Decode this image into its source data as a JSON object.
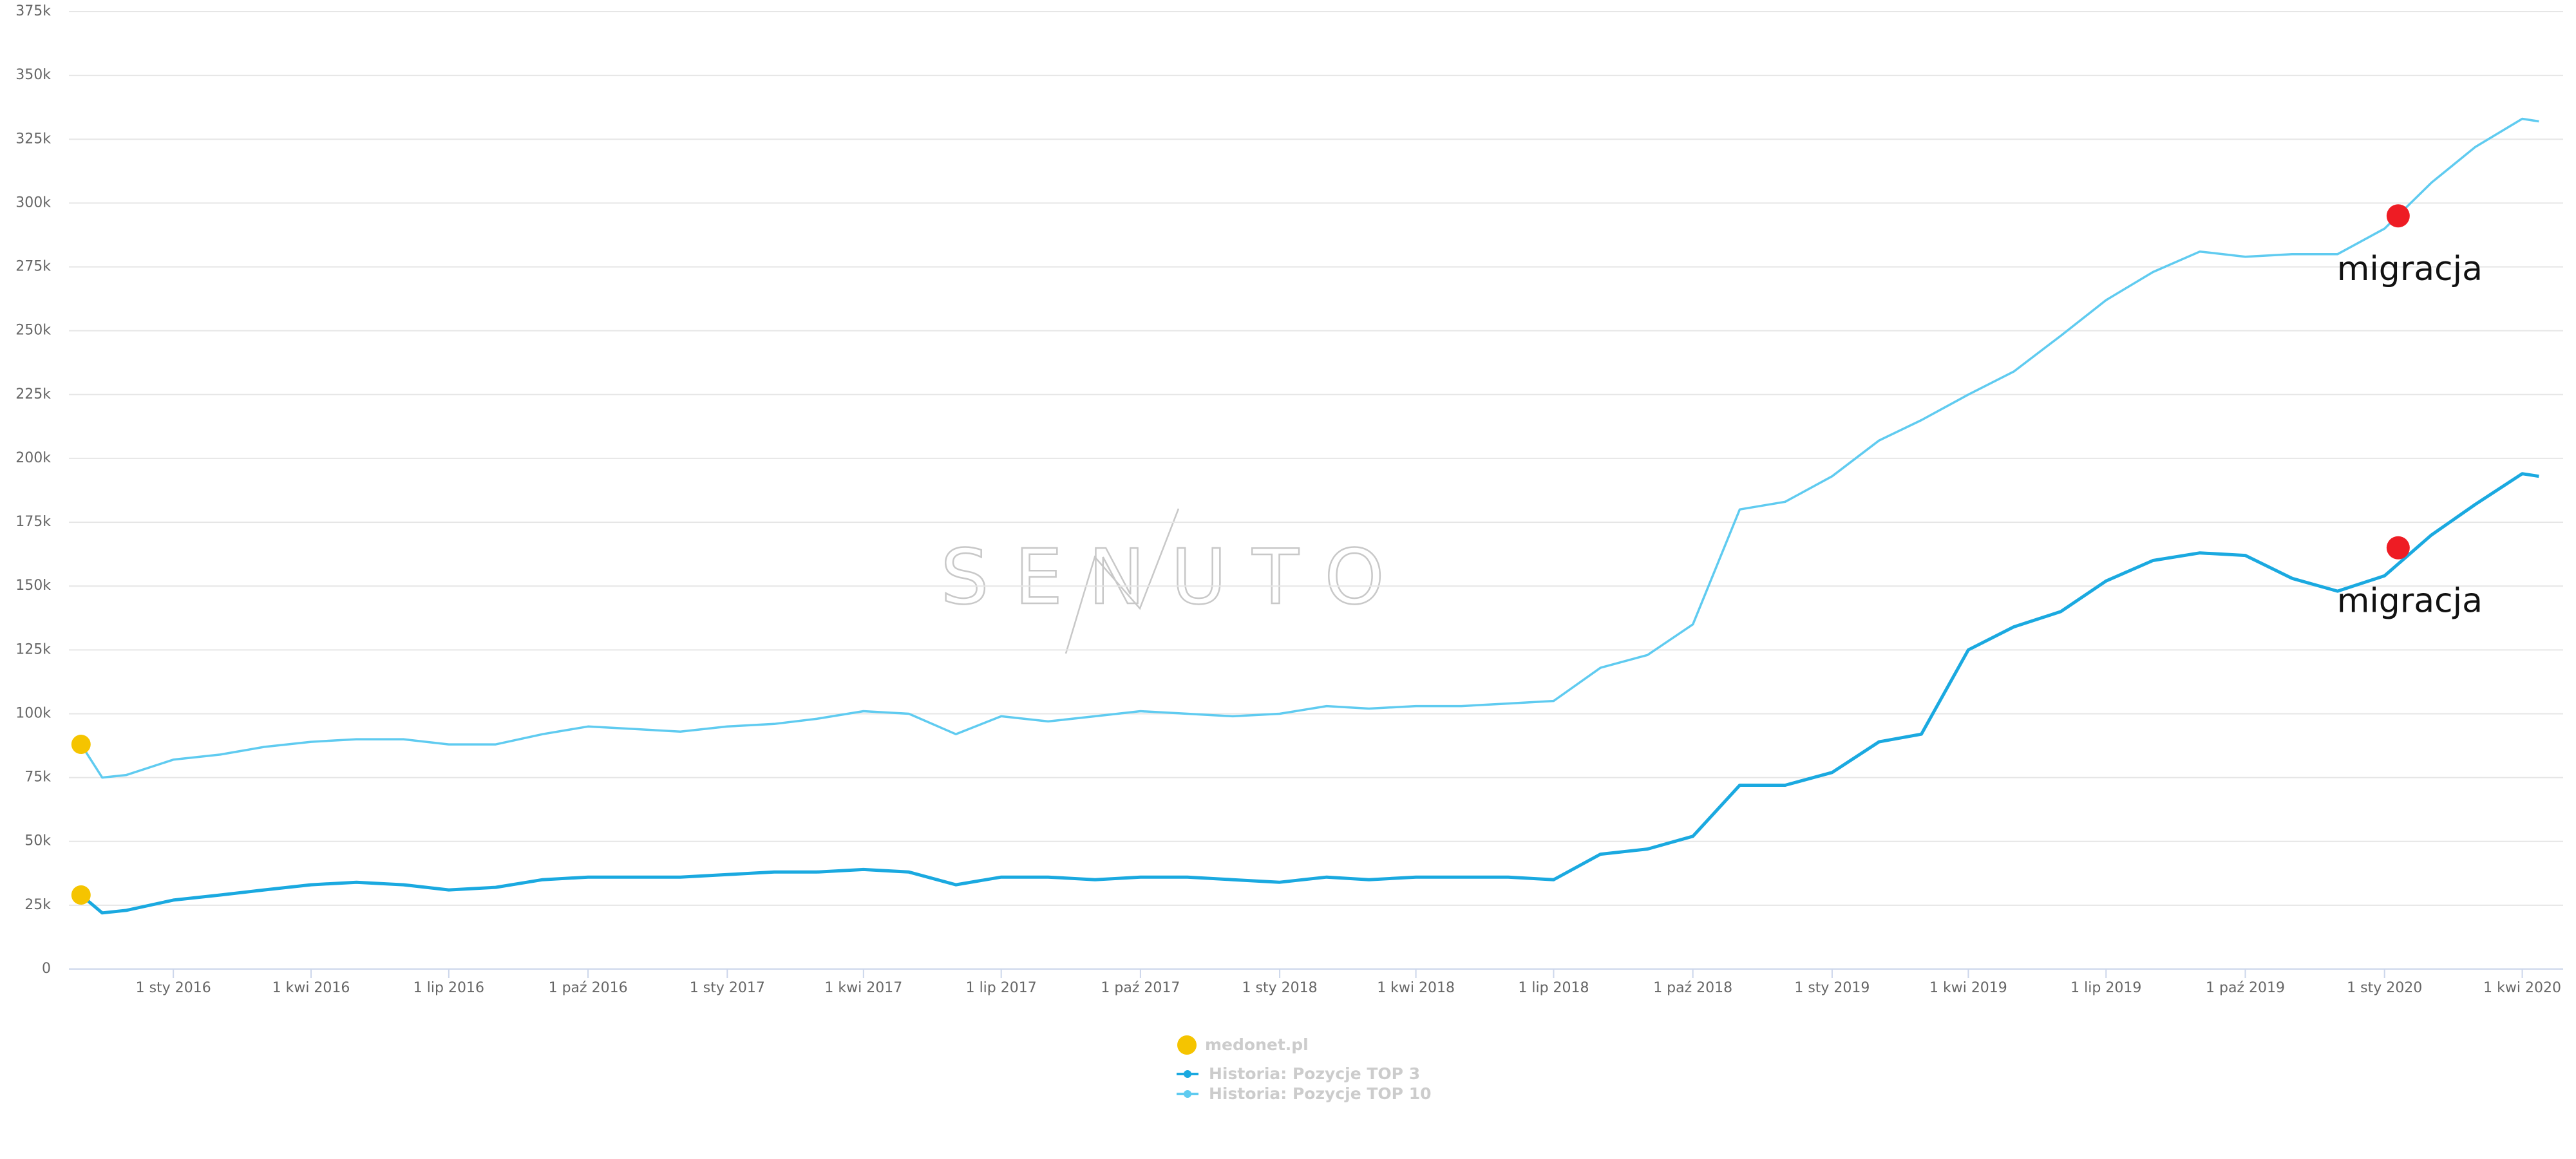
{
  "chart_data": {
    "type": "line",
    "watermark": "SENUTO",
    "legend": {
      "title": "medonet.pl",
      "color": "#f5c400"
    },
    "x": [
      "2015-11-01",
      "2015-11-15",
      "2015-12-01",
      "2016-01-01",
      "2016-02-01",
      "2016-03-01",
      "2016-04-01",
      "2016-05-01",
      "2016-06-01",
      "2016-07-01",
      "2016-08-01",
      "2016-09-01",
      "2016-10-01",
      "2016-11-01",
      "2016-12-01",
      "2017-01-01",
      "2017-02-01",
      "2017-03-01",
      "2017-04-01",
      "2017-05-01",
      "2017-06-01",
      "2017-07-01",
      "2017-08-01",
      "2017-09-01",
      "2017-10-01",
      "2017-11-01",
      "2017-12-01",
      "2018-01-01",
      "2018-02-01",
      "2018-03-01",
      "2018-04-01",
      "2018-05-01",
      "2018-06-01",
      "2018-07-01",
      "2018-08-01",
      "2018-09-01",
      "2018-10-01",
      "2018-11-01",
      "2018-12-01",
      "2019-01-01",
      "2019-02-01",
      "2019-03-01",
      "2019-04-01",
      "2019-05-01",
      "2019-06-01",
      "2019-07-01",
      "2019-08-01",
      "2019-09-01",
      "2019-10-01",
      "2019-11-01",
      "2019-12-01",
      "2020-01-01",
      "2020-02-01",
      "2020-03-01",
      "2020-04-01",
      "2020-04-12"
    ],
    "series": [
      {
        "name": "Historia: Pozycje TOP 3",
        "color": "#1aa9e0",
        "values": [
          29000,
          22000,
          23000,
          27000,
          29000,
          31000,
          33000,
          34000,
          33000,
          31000,
          32000,
          35000,
          36000,
          36000,
          36000,
          37000,
          38000,
          38000,
          39000,
          38000,
          33000,
          36000,
          36000,
          35000,
          36000,
          36000,
          35000,
          34000,
          36000,
          35000,
          36000,
          36000,
          36000,
          35000,
          45000,
          47000,
          52000,
          72000,
          72000,
          77000,
          89000,
          92000,
          125000,
          134000,
          140000,
          152000,
          160000,
          163000,
          162000,
          153000,
          148000,
          154000,
          170000,
          182000,
          194000,
          193000
        ]
      },
      {
        "name": "Historia: Pozycje TOP 10",
        "color": "#5fcbf0",
        "values": [
          88000,
          75000,
          76000,
          82000,
          84000,
          87000,
          89000,
          90000,
          90000,
          88000,
          88000,
          92000,
          95000,
          94000,
          93000,
          95000,
          96000,
          98000,
          101000,
          100000,
          92000,
          99000,
          97000,
          99000,
          101000,
          100000,
          99000,
          100000,
          103000,
          102000,
          103000,
          103000,
          104000,
          105000,
          118000,
          123000,
          135000,
          180000,
          183000,
          193000,
          207000,
          215000,
          225000,
          234000,
          248000,
          262000,
          273000,
          281000,
          279000,
          280000,
          280000,
          290000,
          308000,
          322000,
          333000,
          332000
        ]
      }
    ],
    "annotations": [
      {
        "text": "migracja",
        "x": "2020-01-10",
        "y": 295000,
        "color": "#ee1c24"
      },
      {
        "text": "migracja",
        "x": "2020-01-10",
        "y": 165000,
        "color": "#ee1c24"
      }
    ],
    "xlim": [
      "2015-10-24",
      "2020-04-28"
    ],
    "xticks": [
      {
        "value": "2016-01-01",
        "label": "1 sty 2016"
      },
      {
        "value": "2016-04-01",
        "label": "1 kwi 2016"
      },
      {
        "value": "2016-07-01",
        "label": "1 lip 2016"
      },
      {
        "value": "2016-10-01",
        "label": "1 paź 2016"
      },
      {
        "value": "2017-01-01",
        "label": "1 sty 2017"
      },
      {
        "value": "2017-04-01",
        "label": "1 kwi 2017"
      },
      {
        "value": "2017-07-01",
        "label": "1 lip 2017"
      },
      {
        "value": "2017-10-01",
        "label": "1 paź 2017"
      },
      {
        "value": "2018-01-01",
        "label": "1 sty 2018"
      },
      {
        "value": "2018-04-01",
        "label": "1 kwi 2018"
      },
      {
        "value": "2018-07-01",
        "label": "1 lip 2018"
      },
      {
        "value": "2018-10-01",
        "label": "1 paź 2018"
      },
      {
        "value": "2019-01-01",
        "label": "1 sty 2019"
      },
      {
        "value": "2019-04-01",
        "label": "1 kwi 2019"
      },
      {
        "value": "2019-07-01",
        "label": "1 lip 2019"
      },
      {
        "value": "2019-10-01",
        "label": "1 paź 2019"
      },
      {
        "value": "2020-01-01",
        "label": "1 sty 2020"
      },
      {
        "value": "2020-04-01",
        "label": "1 kwi 2020"
      }
    ],
    "ylim": [
      0,
      375000
    ],
    "yticks": [
      0,
      {
        "value": 25000,
        "label": "25k"
      },
      {
        "value": 50000,
        "label": "50k"
      },
      {
        "value": 75000,
        "label": "75k"
      },
      {
        "value": 100000,
        "label": "100k"
      },
      {
        "value": 125000,
        "label": "125k"
      },
      {
        "value": 150000,
        "label": "150k"
      },
      {
        "value": 175000,
        "label": "175k"
      },
      {
        "value": 200000,
        "label": "200k"
      },
      {
        "value": 225000,
        "label": "225k"
      },
      {
        "value": 250000,
        "label": "250k"
      },
      {
        "value": 275000,
        "label": "275k"
      },
      {
        "value": 300000,
        "label": "300k"
      },
      {
        "value": 325000,
        "label": "325k"
      },
      {
        "value": 350000,
        "label": "350k"
      },
      {
        "value": 375000,
        "label": "375k"
      }
    ],
    "grid": true
  }
}
